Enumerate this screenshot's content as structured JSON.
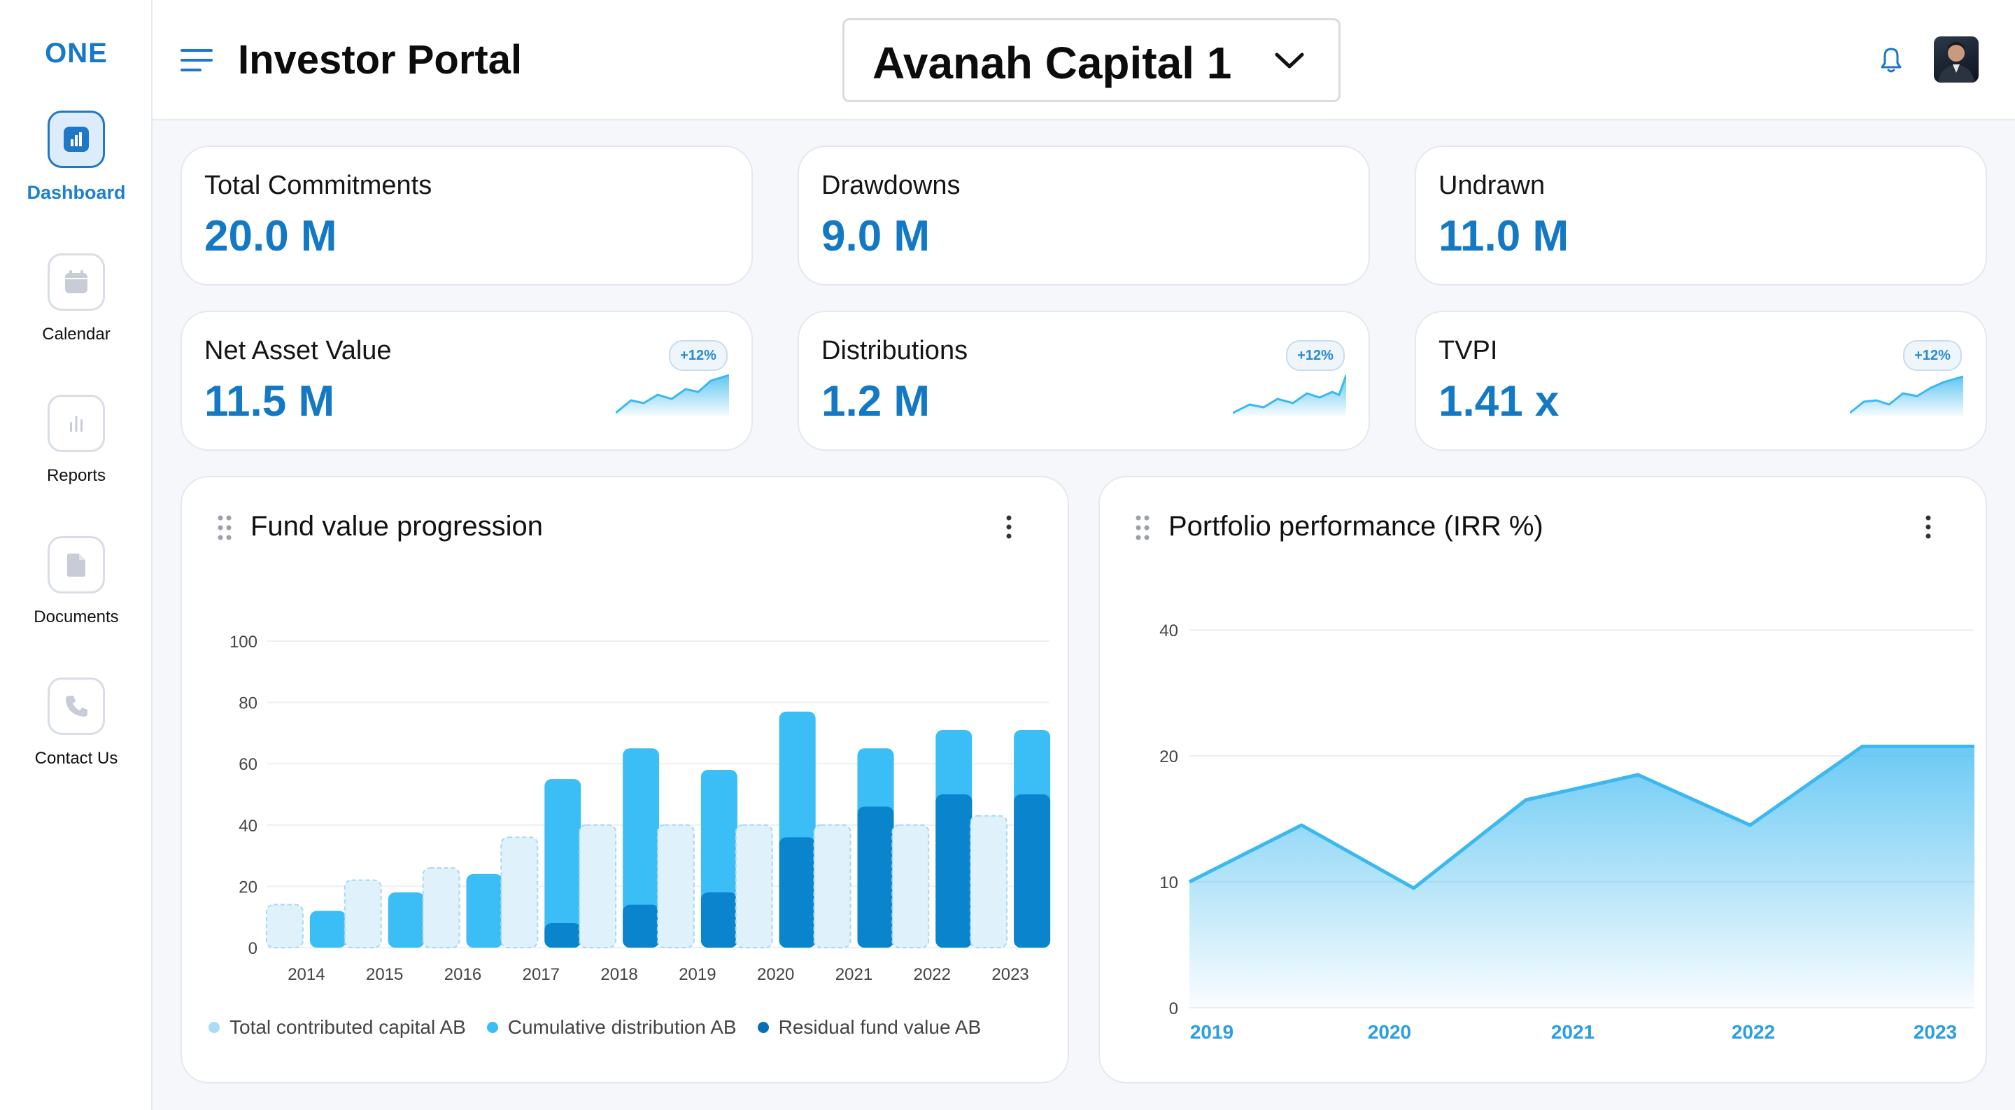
{
  "app": {
    "logo": "ONE"
  },
  "sidebar": {
    "items": [
      {
        "label": "Dashboard"
      },
      {
        "label": "Calendar"
      },
      {
        "label": "Reports"
      },
      {
        "label": "Documents"
      },
      {
        "label": "Contact Us"
      }
    ]
  },
  "header": {
    "title": "Investor Portal",
    "fund_selected": "Avanah Capital 1"
  },
  "stats": [
    {
      "label": "Total Commitments",
      "value": "20.0 M"
    },
    {
      "label": "Drawdowns",
      "value": "9.0 M"
    },
    {
      "label": "Undrawn",
      "value": "11.0 M"
    },
    {
      "label": "Net Asset Value",
      "value": "11.5 M",
      "badge": "+12%"
    },
    {
      "label": "Distributions",
      "value": "1.2 M",
      "badge": "+12%"
    },
    {
      "label": "TVPI",
      "value": "1.41 x",
      "badge": "+12%"
    }
  ],
  "colors": {
    "accent": "#1479c4",
    "light_bar": "#dff1fb",
    "mid_bar": "#3bbdf6",
    "dark_bar": "#0a84cc",
    "line": "#3bb8f0"
  },
  "chart_data": [
    {
      "type": "bar",
      "title": "Fund value progression",
      "categories": [
        "2014",
        "2015",
        "2016",
        "2017",
        "2018",
        "2019",
        "2020",
        "2021",
        "2022",
        "2023"
      ],
      "ylim": [
        0,
        100
      ],
      "yticks": [
        "0",
        "20",
        "40",
        "60",
        "80",
        "100"
      ],
      "series": [
        {
          "name": "Total contributed capital AB",
          "values": [
            14,
            22,
            26,
            36,
            40,
            40,
            40,
            40,
            40,
            43
          ]
        },
        {
          "name": "Cumulative distribution AB",
          "values": [
            12,
            18,
            24,
            55,
            65,
            58,
            77,
            65,
            71,
            71
          ]
        },
        {
          "name": "Residual fund value AB",
          "values": [
            0,
            0,
            0,
            8,
            14,
            18,
            36,
            46,
            50,
            50
          ]
        }
      ],
      "legend_position": "bottom"
    },
    {
      "type": "area",
      "title": "Portfolio performance (IRR %)",
      "x_labels": [
        "2019",
        "2020",
        "2021",
        "2022",
        "2023"
      ],
      "yticks": [
        "0",
        "10",
        "20",
        "40"
      ],
      "series": [
        {
          "name": "IRR",
          "values": [
            10,
            14.5,
            9.5,
            16.5,
            18.5,
            14.5,
            21.5,
            21.5
          ]
        }
      ]
    }
  ]
}
